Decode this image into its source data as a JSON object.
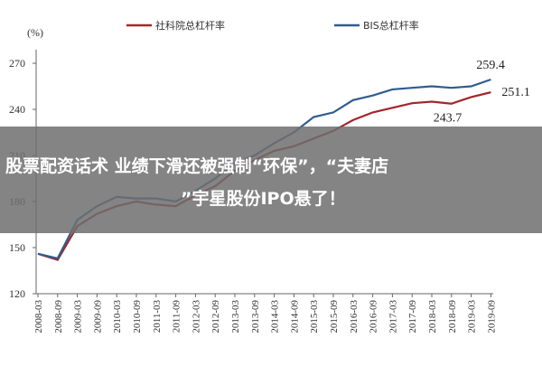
{
  "chart_data": {
    "type": "line",
    "y_label": "(%)",
    "categories": [
      "2008-03",
      "2008-09",
      "2009-03",
      "2009-09",
      "2010-03",
      "2010-09",
      "2011-03",
      "2011-09",
      "2012-03",
      "2012-09",
      "2013-03",
      "2013-09",
      "2014-03",
      "2014-09",
      "2015-03",
      "2015-09",
      "2016-03",
      "2016-09",
      "2017-03",
      "2017-09",
      "2018-03",
      "2018-09",
      "2019-03",
      "2019-09"
    ],
    "series": [
      {
        "name": "社科院总杠杆率",
        "color": "#a3262c",
        "values": [
          146,
          142,
          164,
          172,
          177,
          180,
          178,
          177,
          184,
          190,
          200,
          207,
          213,
          216,
          221,
          226,
          233,
          238,
          241,
          244,
          245,
          243.7,
          248,
          251.1
        ]
      },
      {
        "name": "BIS总杠杆率",
        "color": "#2f5d8e",
        "values": [
          146,
          143,
          168,
          177,
          183,
          182,
          182,
          180,
          187,
          195,
          205,
          210,
          218,
          225,
          235,
          238,
          246,
          249,
          253,
          254,
          255,
          254,
          255,
          259.4
        ]
      }
    ],
    "annotations": [
      "259.4",
      "251.1",
      "243.7"
    ],
    "ylim": [
      120,
      280
    ],
    "yticks": [
      120,
      150,
      180,
      210,
      240,
      270
    ],
    "grid": false
  },
  "banner": {
    "lines": [
      "股票配资话术 业绩下滑还被强制“环保”，“夫妻店",
      "”宇星股份IPO悬了！"
    ]
  }
}
